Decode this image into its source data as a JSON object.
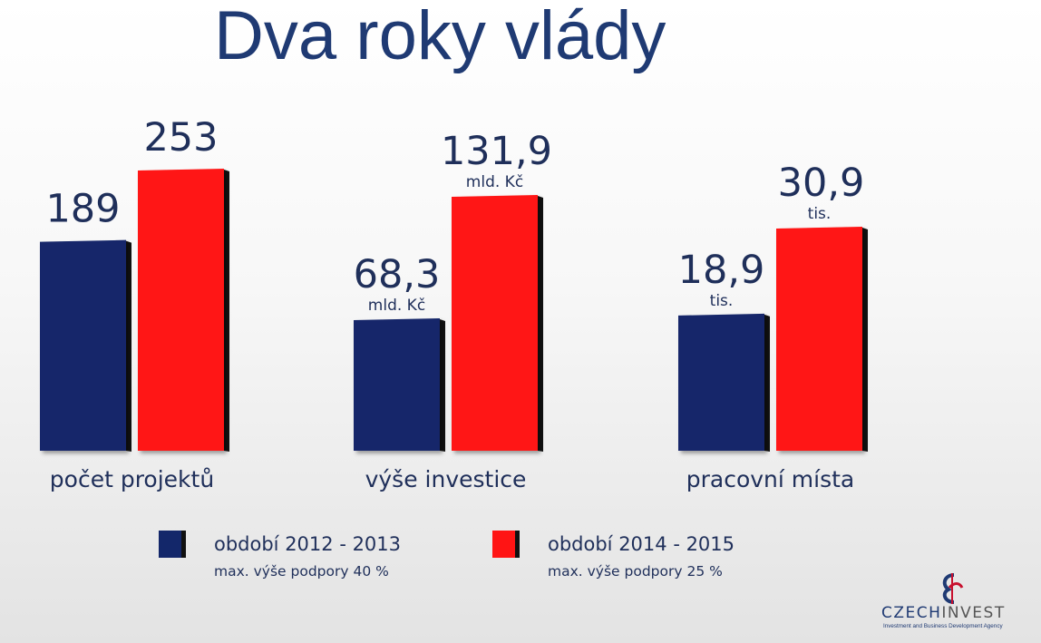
{
  "title": "Dva roky vlády",
  "colors": {
    "navy": "#13276a",
    "red": "#ff1414",
    "text": "#1f2f5a"
  },
  "chart_data": {
    "type": "bar",
    "categories": [
      "počet projektů",
      "výše investice",
      "pracovní místa"
    ],
    "series": [
      {
        "name": "období 2012 - 2013",
        "values": [
          189,
          68.3,
          18.9
        ],
        "labels": [
          "189",
          "68,3",
          "18,9"
        ],
        "units": [
          "",
          "mld. Kč",
          "tis."
        ]
      },
      {
        "name": "období 2014 - 2015",
        "values": [
          253,
          131.9,
          30.9
        ],
        "labels": [
          "253",
          "131,9",
          "30,9"
        ],
        "units": [
          "",
          "mld. Kč",
          "tis."
        ]
      }
    ]
  },
  "legend": [
    {
      "label": "období 2012 - 2013",
      "sub": "max. výše podpory 40 %"
    },
    {
      "label": "období 2014 - 2015",
      "sub": "max. výše podpory 25 %"
    }
  ],
  "logo": {
    "name_part1": "CZECH",
    "name_part2": "INVEST",
    "subtitle": "Investment and Business Development Agency"
  }
}
